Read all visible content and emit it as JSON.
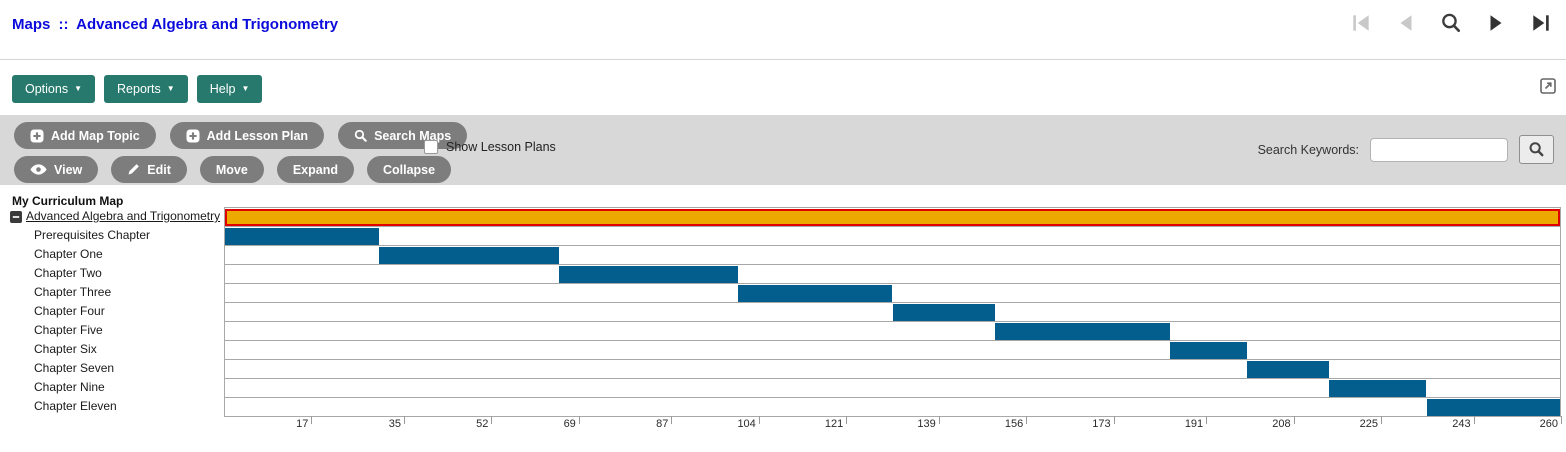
{
  "header": {
    "breadcrumb_root": "Maps",
    "separator": "::",
    "title": "Advanced Algebra and Trigonometry",
    "nav_icons": [
      "first-page-icon",
      "previous-page-icon",
      "search-icon",
      "next-page-icon",
      "last-page-icon"
    ]
  },
  "menubar": {
    "options_label": "Options",
    "reports_label": "Reports",
    "help_label": "Help",
    "caret": "▼"
  },
  "toolbar": {
    "add_map_topic_label": "Add Map Topic",
    "add_lesson_plan_label": "Add Lesson Plan",
    "search_maps_label": "Search Maps",
    "show_lesson_plans_label": "Show Lesson Plans",
    "show_lesson_plans_checked": false,
    "view_label": "View",
    "edit_label": "Edit",
    "move_label": "Move",
    "expand_label": "Expand",
    "collapse_label": "Collapse",
    "search_keywords_label": "Search Keywords:",
    "search_input_value": "",
    "search_input_placeholder": ""
  },
  "tree": {
    "header": "My Curriculum Map"
  },
  "chart_data": {
    "type": "bar",
    "orientation": "horizontal-gantt",
    "title": "My Curriculum Map",
    "xlim": [
      0,
      260
    ],
    "x_ticks": [
      17,
      35,
      52,
      69,
      87,
      104,
      121,
      139,
      156,
      173,
      191,
      208,
      225,
      243,
      260
    ],
    "grid": false,
    "rows": [
      {
        "label": "Advanced Algebra and Trigonometry",
        "start": 0,
        "end": 260,
        "color": "#eca900",
        "border_color": "#e10000",
        "is_root": true
      },
      {
        "label": "Prerequisites Chapter",
        "start": 0,
        "end": 30,
        "color": "#035e8e"
      },
      {
        "label": "Chapter One",
        "start": 30,
        "end": 65,
        "color": "#035e8e"
      },
      {
        "label": "Chapter Two",
        "start": 65,
        "end": 100,
        "color": "#035e8e"
      },
      {
        "label": "Chapter Three",
        "start": 100,
        "end": 130,
        "color": "#035e8e"
      },
      {
        "label": "Chapter Four",
        "start": 130,
        "end": 150,
        "color": "#035e8e"
      },
      {
        "label": "Chapter Five",
        "start": 150,
        "end": 184,
        "color": "#035e8e"
      },
      {
        "label": "Chapter Six",
        "start": 184,
        "end": 199,
        "color": "#035e8e"
      },
      {
        "label": "Chapter Seven",
        "start": 199,
        "end": 215,
        "color": "#035e8e"
      },
      {
        "label": "Chapter Nine",
        "start": 215,
        "end": 234,
        "color": "#035e8e"
      },
      {
        "label": "Chapter Eleven",
        "start": 234,
        "end": 260,
        "color": "#035e8e"
      }
    ]
  },
  "colors": {
    "link_blue": "#0b0bdb",
    "menu_teal": "#26796c",
    "pill_gray": "#7d7d7d",
    "toolbar_bg": "#d8d8d8",
    "bar_blue": "#035e8e",
    "bar_orange": "#eca900",
    "bar_orange_border": "#e10000",
    "grid_line": "#a8a8a8"
  }
}
